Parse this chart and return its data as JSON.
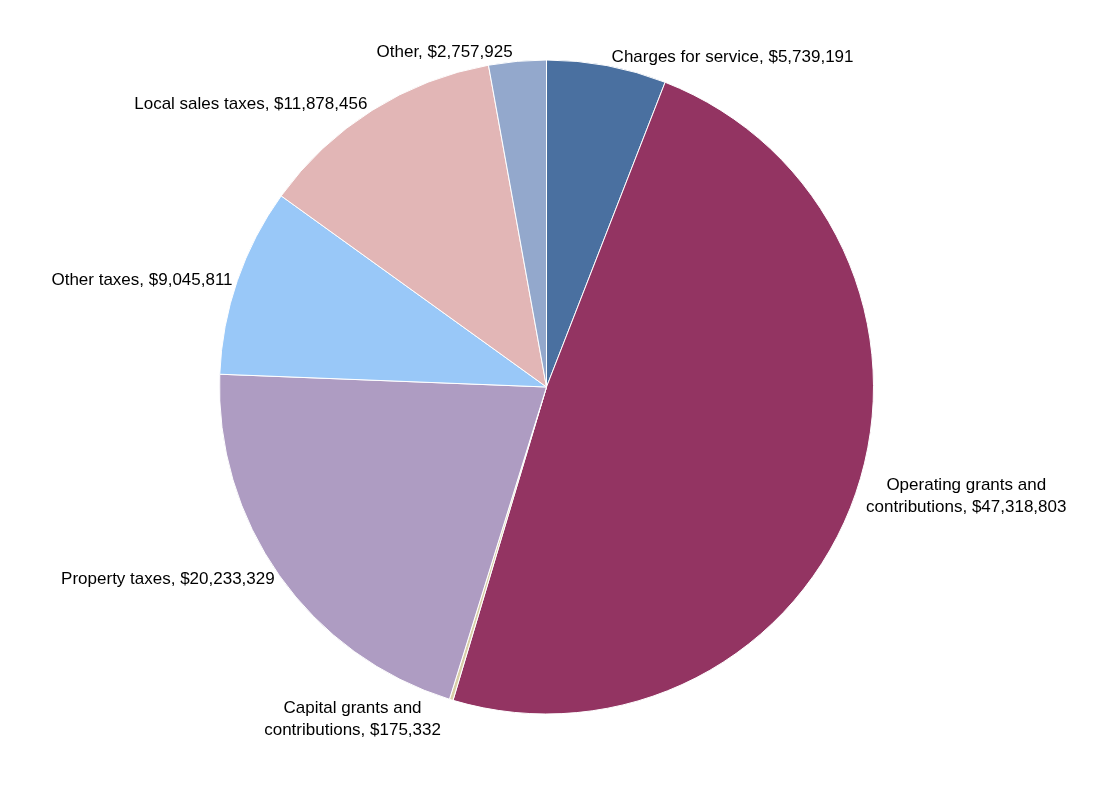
{
  "chart_data": {
    "type": "pie",
    "categories": [
      "Charges for service",
      "Operating grants and contributions",
      "Capital grants and contributions",
      "Property taxes",
      "Other taxes",
      "Local sales taxes",
      "Other"
    ],
    "values": [
      5739191,
      47318803,
      175332,
      20233329,
      9045811,
      11878456,
      2757925
    ],
    "value_labels": [
      "$5,739,191",
      "$47,318,803",
      "$175,332",
      "$20,233,329",
      "$9,045,811",
      "$11,878,456",
      "$2,757,925"
    ],
    "colors": [
      "#4a70a0",
      "#933462",
      "#d8cfa8",
      "#ae9cc2",
      "#99c8f8",
      "#e2b6b6",
      "#93a8cc"
    ],
    "legend": false
  }
}
